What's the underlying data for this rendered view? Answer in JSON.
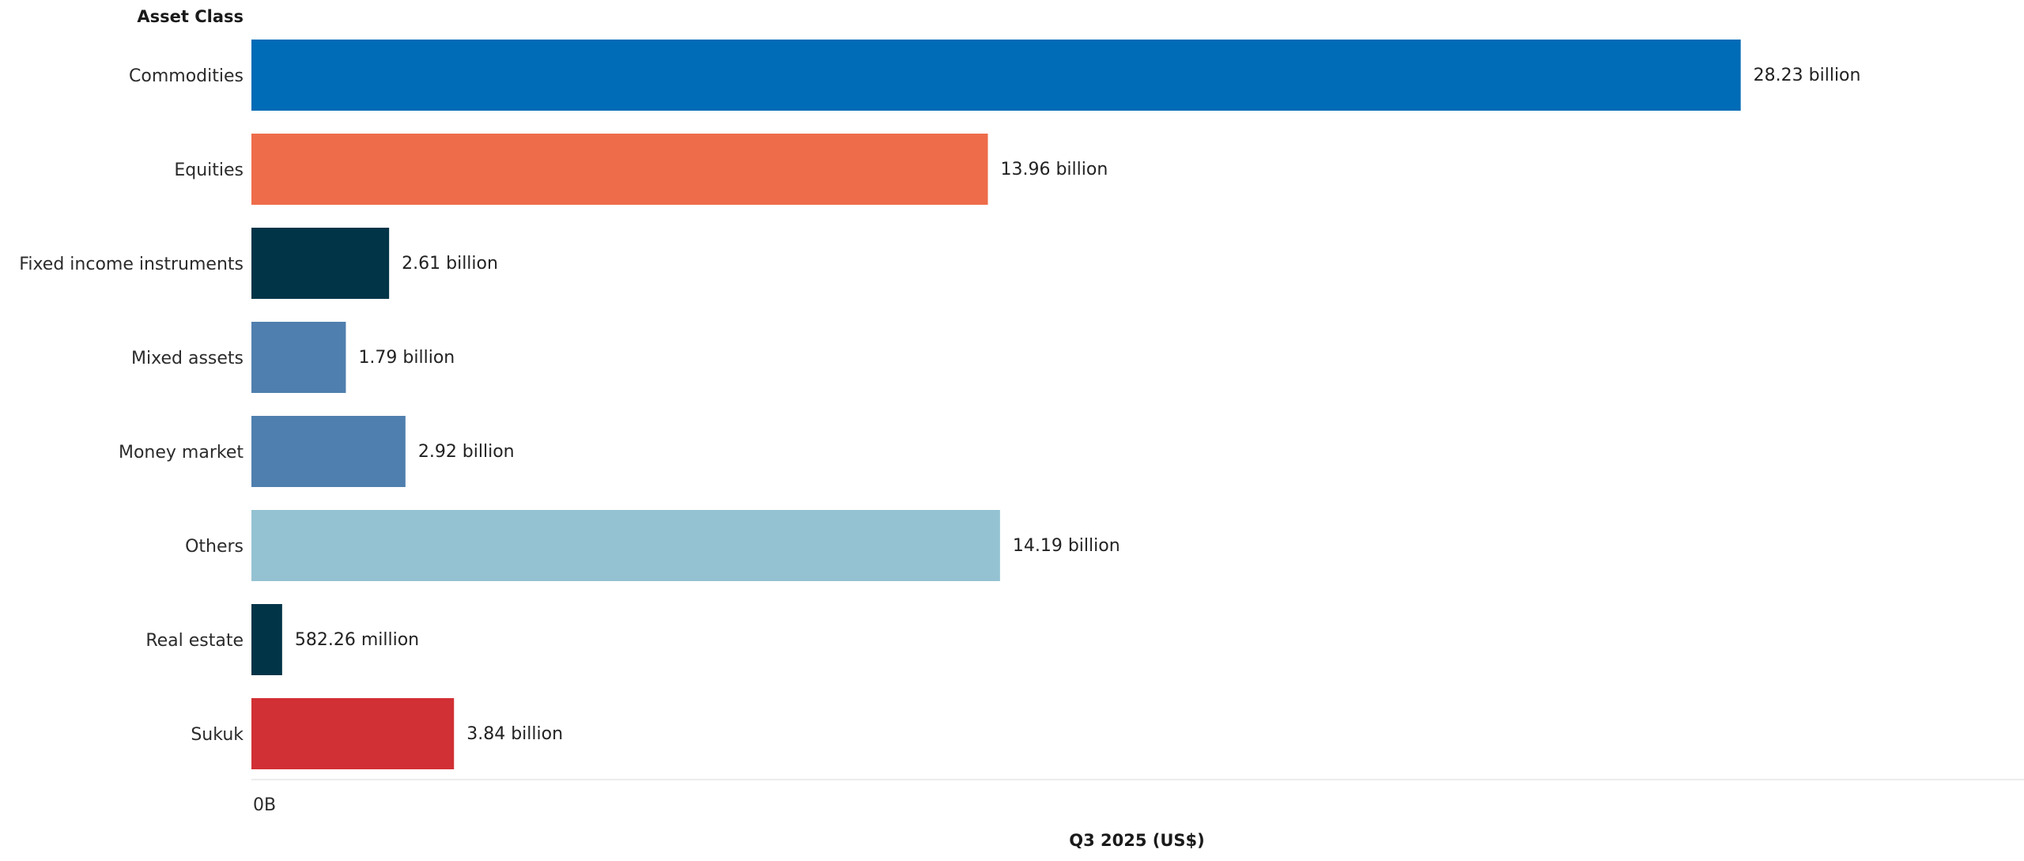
{
  "chart_data": {
    "type": "bar",
    "orientation": "horizontal",
    "row_header": "Asset Class",
    "xlabel": "Q3 2025 (US$)",
    "xlim": [
      0,
      33.6
    ],
    "unit": "US$ billion",
    "x_ticks": [
      {
        "value": 0,
        "label": "0B"
      }
    ],
    "grid": false,
    "legend": null,
    "categories": [
      "Commodities",
      "Equities",
      "Fixed income instruments",
      "Mixed assets",
      "Money market",
      "Others",
      "Real estate",
      "Sukuk"
    ],
    "values": [
      28.23,
      13.96,
      2.61,
      1.79,
      2.92,
      14.19,
      0.58226,
      3.84
    ],
    "data_labels": [
      "28.23 billion",
      "13.96 billion",
      "2.61 billion",
      "1.79 billion",
      "2.92 billion",
      "14.19 billion",
      "582.26 million",
      "3.84 billion"
    ],
    "colors": [
      "#006BB6",
      "#EE6C4A",
      "#023447",
      "#4F7FAE",
      "#4F7FAE",
      "#94C2D2",
      "#023447",
      "#D13035"
    ]
  }
}
